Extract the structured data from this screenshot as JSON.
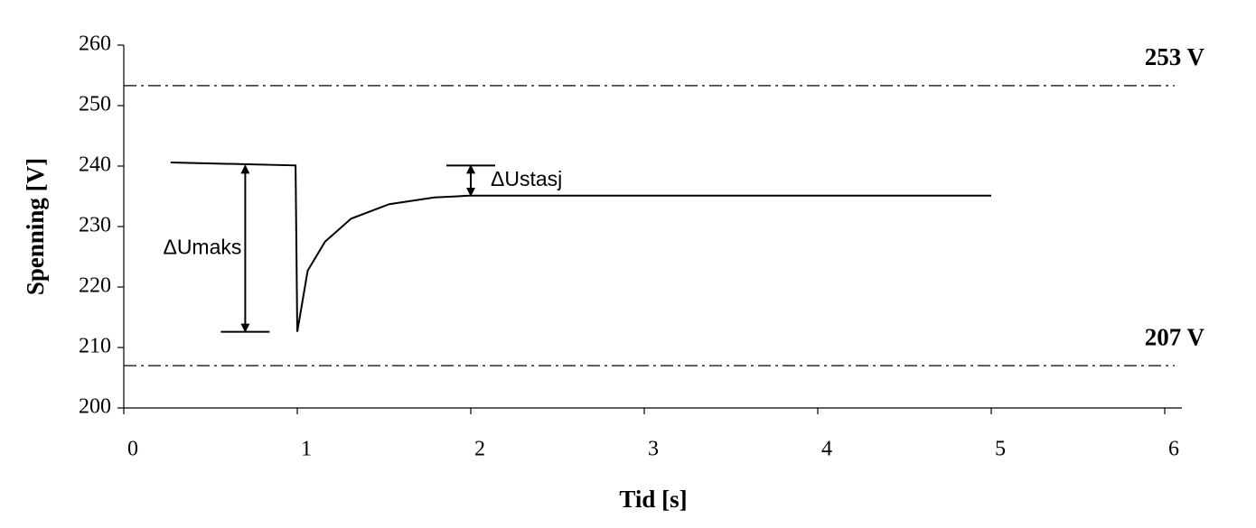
{
  "chart_data": {
    "type": "line",
    "x_label": "Tid [s]",
    "y_label": "Spenning [V]",
    "xlim": [
      0,
      6
    ],
    "xticks": [
      0,
      1,
      2,
      3,
      4,
      5,
      6
    ],
    "ylim": [
      200,
      260
    ],
    "yticks": [
      200,
      210,
      220,
      230,
      240,
      250,
      260
    ],
    "color": "#000000",
    "x": [
      0.27,
      0.99,
      1.0,
      1.06,
      1.16,
      1.31,
      1.53,
      1.79,
      1.99,
      5.0
    ],
    "values": [
      240.6,
      240.1,
      212.6,
      222.7,
      227.5,
      231.3,
      233.7,
      234.8,
      235.1,
      235.1
    ],
    "reference_lines": [
      {
        "value": 253.3,
        "label": "253 V"
      },
      {
        "value": 207.0,
        "label": "207 V"
      }
    ],
    "annotations": [
      {
        "text": "ΔUmaks",
        "x": 0.7,
        "from": 240.1,
        "to": 212.6
      },
      {
        "text": "ΔUstasj",
        "x": 2.0,
        "from": 240.1,
        "to": 235.1
      }
    ]
  }
}
